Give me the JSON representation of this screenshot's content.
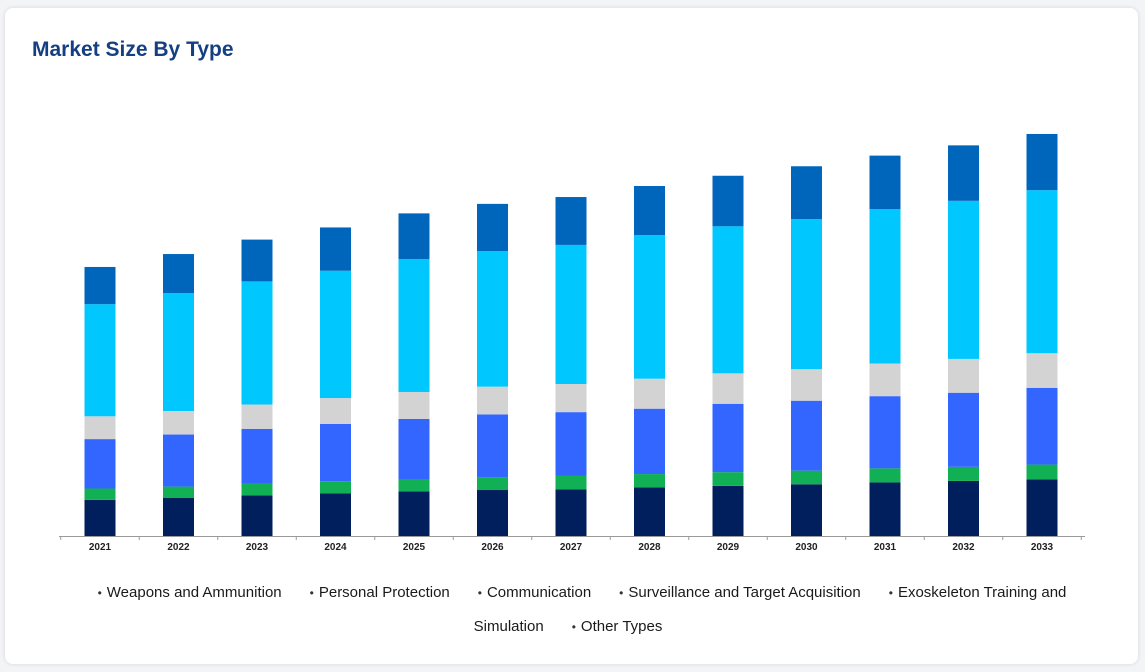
{
  "title": "Market Size By Type",
  "chart_data": {
    "type": "bar",
    "stacked": true,
    "title": "Market Size By Type",
    "categories": [
      "2021",
      "2022",
      "2023",
      "2024",
      "2025",
      "2026",
      "2027",
      "2028",
      "2029",
      "2030",
      "2031",
      "2032",
      "2033"
    ],
    "series": [
      {
        "name": "Weapons and Ammunition",
        "color": "#001f5c",
        "values": [
          9.5,
          10,
          10.7,
          11.2,
          11.7,
          12.1,
          12.3,
          12.8,
          13.2,
          13.6,
          14.1,
          14.5,
          14.9
        ]
      },
      {
        "name": "Personal Protection",
        "color": "#12b054",
        "values": [
          3,
          3,
          3.1,
          3.2,
          3.3,
          3.4,
          3.5,
          3.5,
          3.6,
          3.6,
          3.7,
          3.7,
          3.9
        ]
      },
      {
        "name": "Communication",
        "color": "#3366ff",
        "values": [
          13,
          13.7,
          14.4,
          15.1,
          15.8,
          16.5,
          16.8,
          17.2,
          18,
          18.4,
          19,
          19.5,
          20.2
        ]
      },
      {
        "name": "Surveillance and Target Acquisition",
        "color": "#d3d3d3",
        "values": [
          6,
          6.2,
          6.4,
          6.8,
          7.1,
          7.3,
          7.4,
          7.9,
          8,
          8.3,
          8.6,
          8.9,
          9.1
        ]
      },
      {
        "name": "Exoskeleton Training and Simulation",
        "color": "#00c8ff",
        "values": [
          29.5,
          31,
          32.4,
          33.5,
          35,
          35.7,
          36.6,
          37.8,
          38.7,
          39.5,
          40.6,
          41.6,
          42.9
        ]
      },
      {
        "name": "Other Types",
        "color": "#0066bb",
        "values": [
          9.8,
          10.3,
          11,
          11.4,
          12,
          12.4,
          12.6,
          12.9,
          13.3,
          13.9,
          14.1,
          14.6,
          14.8
        ]
      }
    ],
    "ylim": [
      0,
      110
    ],
    "grid": false,
    "legend_position": "bottom"
  }
}
